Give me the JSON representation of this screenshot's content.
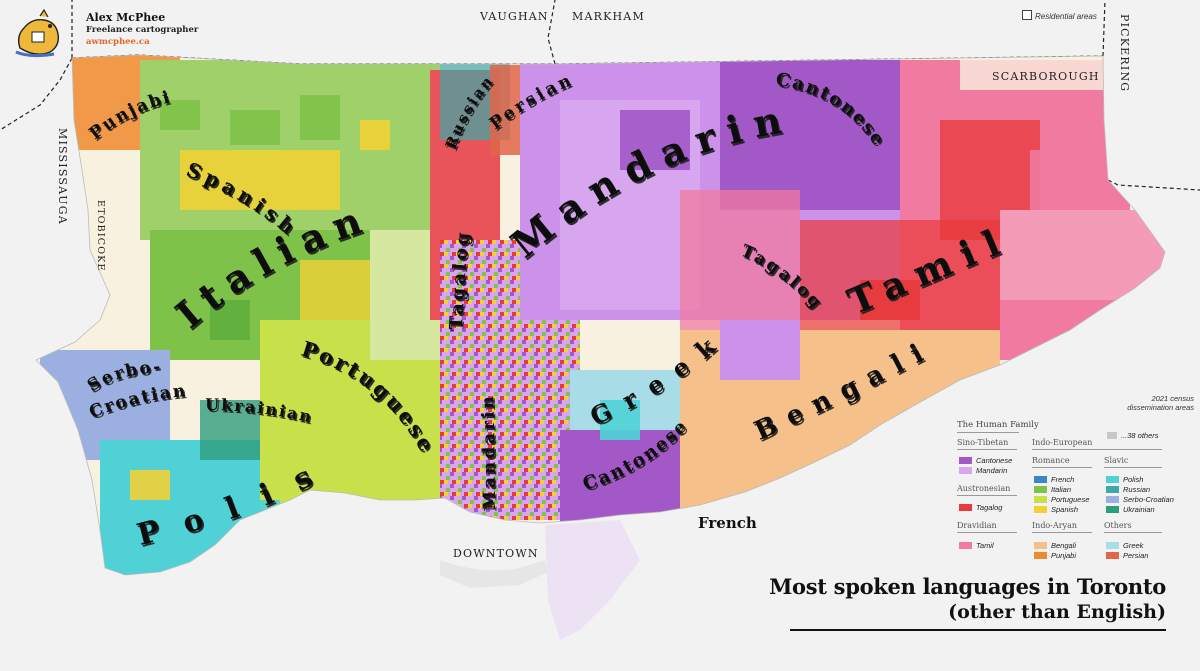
{
  "author": {
    "name": "Alex McPhee",
    "role": "Freelance cartographer",
    "website": "awmcphee.ca"
  },
  "title": {
    "line1": "Most spoken languages in Toronto",
    "line2": "(other than English)"
  },
  "residential_label": "Residential areas",
  "census_note": {
    "line1": "2021 census",
    "line2": "dissemination areas"
  },
  "neighbours": {
    "vaughan": "VAUGHAN",
    "markham": "MARKHAM",
    "pickering": "PICKERING",
    "mississauga": "MISSISSAUGA",
    "etobicoke": "ETOBICOKE",
    "scarborough": "SCARBOROUGH",
    "downtown": "DOWNTOWN"
  },
  "map_labels": {
    "punjabi": "Punjabi",
    "russian": "Russian",
    "persian": "Persian",
    "cantonese_ne": "Cantonese",
    "spanish": "Spanish",
    "italian": "Italian",
    "mandarin_main": "Mandarin",
    "tagalog_c": "Tagalog",
    "tagalog_e": "Tagalog",
    "tamil": "Tamil",
    "bengali": "Bengali",
    "greek": "Greek",
    "cantonese_s": "Cantonese",
    "mandarin_s": "Mandarin",
    "portuguese": "Portuguese",
    "serbo": "Serbo-",
    "croatian": "Croatian",
    "ukrainian": "Ukrainian",
    "polish": "Polish",
    "french": "French"
  },
  "legend": {
    "heading": "The Human Family",
    "others_count": "...38 others",
    "groups": {
      "sino_tibetan": "Sino-Tibetan",
      "austronesian": "Austronesian",
      "dravidian": "Dravidian",
      "indo_european": "Indo-European",
      "romance": "Romance",
      "slavic": "Slavic",
      "indo_aryan": "Indo-Aryan",
      "others": "Others"
    },
    "items": {
      "cantonese": "Cantonese",
      "mandarin": "Mandarin",
      "tagalog": "Tagalog",
      "tamil": "Tamil",
      "french": "French",
      "italian": "Italian",
      "portuguese": "Portuguese",
      "spanish": "Spanish",
      "polish": "Polish",
      "russian": "Russian",
      "serbo_croatian": "Serbo-Croatian",
      "ukrainian": "Ukrainian",
      "bengali": "Bengali",
      "punjabi": "Punjabi",
      "greek": "Greek",
      "persian": "Persian"
    }
  },
  "colors": {
    "cantonese": "#a259c7",
    "mandarin": "#d7a6ef",
    "tagalog": "#e83a3a",
    "tamil": "#f07aa0",
    "french": "#3d86c6",
    "italian": "#7fc24a",
    "portuguese": "#c8e04a",
    "spanish": "#f0d237",
    "polish": "#4fd1d6",
    "russian": "#3da8a8",
    "serbo_croatian": "#9bb0e0",
    "ukrainian": "#2e9d7d",
    "bengali": "#f5c08a",
    "punjabi": "#f08a2e",
    "greek": "#a8dde8",
    "persian": "#e0654a",
    "others": "#c8c8c8"
  }
}
